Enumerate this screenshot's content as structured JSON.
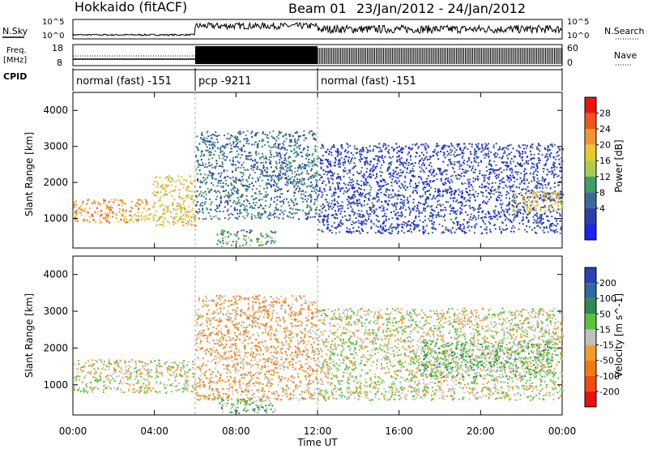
{
  "header": {
    "title": "Hokkaido (fitACF)",
    "beam": "Beam 01",
    "date_range": "23/Jan/2012 - 24/Jan/2012"
  },
  "panels": {
    "nsky_label": "N.Sky",
    "nsearch_label": "N.Search",
    "freq_label_1": "Freq.",
    "freq_label_2": "[MHz]",
    "nave_label": "Nave",
    "cpid_label": "CPID",
    "freq_ticks": [
      "18",
      "8"
    ],
    "nave_ticks": [
      "60",
      "0"
    ],
    "nsky_ticks": [
      "10^5",
      "10^0"
    ],
    "nsearch_ticks": [
      "10^5",
      "10^0"
    ]
  },
  "cpid": [
    {
      "label": "normal (fast) -151",
      "start_h": 0,
      "end_h": 6
    },
    {
      "label": "pcp -9211",
      "start_h": 6,
      "end_h": 12
    },
    {
      "label": "normal (fast) -151",
      "start_h": 12,
      "end_h": 24
    }
  ],
  "power_colorbar": {
    "label": "Power [dB]",
    "ticks": [
      "28",
      "24",
      "20",
      "16",
      "12",
      "8",
      "4"
    ],
    "colors": [
      "#e8150a",
      "#f0571a",
      "#f29535",
      "#e4cc2c",
      "#a9cf4a",
      "#3e9e66",
      "#3a6a98",
      "#2c3faa",
      "#1d22ee"
    ]
  },
  "velocity_colorbar": {
    "label": "Velocity [m s^-1]",
    "ticks": [
      "200",
      "100",
      "50",
      "15",
      "-15",
      "-50",
      "-100",
      "-200"
    ],
    "colors": [
      "#2a3fb8",
      "#2f6aa3",
      "#2f8a50",
      "#56c43e",
      "#c0c0c0",
      "#f29c2e",
      "#f07a12",
      "#f24a10",
      "#e81010"
    ]
  },
  "chart_data": [
    {
      "type": "heatmap",
      "title": "Power",
      "xlabel": "Time UT",
      "ylabel": "Slant Range [km]",
      "x_ticks": [
        "00:00",
        "04:00",
        "08:00",
        "12:00",
        "16:00",
        "20:00",
        "00:00"
      ],
      "xlim_hours": [
        0,
        24
      ],
      "y_ticks": [
        "1000",
        "2000",
        "3000",
        "4000"
      ],
      "ylim": [
        180,
        4500
      ],
      "regions": [
        {
          "h0": 0,
          "h1": 3.8,
          "r0": 900,
          "r1": 1550,
          "value": 24
        },
        {
          "h0": 3.9,
          "h1": 6.0,
          "r0": 800,
          "r1": 2200,
          "value": 22
        },
        {
          "h0": 6.0,
          "h1": 12.0,
          "r0": 1000,
          "r1": 3450,
          "value": 8
        },
        {
          "h0": 7.0,
          "h1": 10.0,
          "r0": 250,
          "r1": 700,
          "value": 14
        },
        {
          "h0": 12.0,
          "h1": 24.0,
          "r0": 600,
          "r1": 3100,
          "value": 6
        },
        {
          "h0": 21.5,
          "h1": 24.0,
          "r0": 1200,
          "r1": 1800,
          "value": 22
        }
      ]
    },
    {
      "type": "heatmap",
      "title": "Velocity",
      "xlabel": "Time UT",
      "ylabel": "Slant Range [km]",
      "x_ticks": [
        "00:00",
        "04:00",
        "08:00",
        "12:00",
        "16:00",
        "20:00",
        "00:00"
      ],
      "xlim_hours": [
        0,
        24
      ],
      "y_ticks": [
        "1000",
        "2000",
        "3000",
        "4000"
      ],
      "ylim": [
        180,
        4500
      ],
      "regions": [
        {
          "h0": 0,
          "h1": 6.0,
          "r0": 800,
          "r1": 1700,
          "value": 0
        },
        {
          "h0": 6.0,
          "h1": 12.0,
          "r0": 600,
          "r1": 3450,
          "value": -40
        },
        {
          "h0": 7.0,
          "h1": 10.0,
          "r0": 250,
          "r1": 650,
          "value": 30
        },
        {
          "h0": 12.0,
          "h1": 24.0,
          "r0": 600,
          "r1": 3100,
          "value": 0
        },
        {
          "h0": 17.0,
          "h1": 23.5,
          "r0": 1200,
          "r1": 2200,
          "value": 20
        }
      ]
    }
  ]
}
